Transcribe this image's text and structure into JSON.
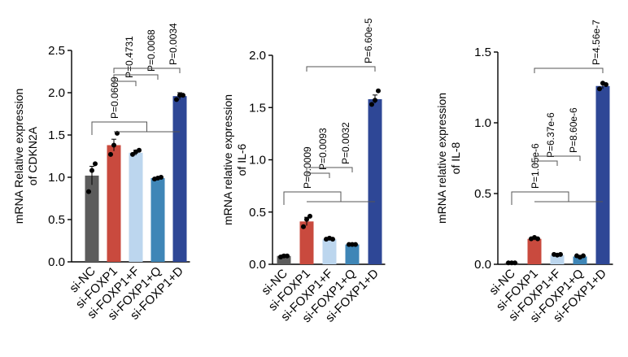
{
  "chart_data": [
    {
      "type": "bar",
      "ylabel_lines": [
        "mRNA Relative expression",
        "of CDKN2A"
      ],
      "categories": [
        "si-NC",
        "si-FOXP1",
        "si-FOXP1+F",
        "si-FOXP1+Q",
        "si-FOXP1+D"
      ],
      "values": [
        1.02,
        1.38,
        1.29,
        0.99,
        1.96
      ],
      "errors": [
        0.11,
        0.07,
        0.03,
        0.01,
        0.04
      ],
      "points": [
        [
          0.83,
          1.08,
          1.16
        ],
        [
          1.27,
          1.38,
          1.52
        ],
        [
          1.27,
          1.3,
          1.32
        ],
        [
          0.98,
          0.99,
          1.0
        ],
        [
          1.92,
          1.97,
          1.97
        ]
      ],
      "colors": [
        "#5c5c5c",
        "#c94a3e",
        "#bcd6ee",
        "#3f86b7",
        "#2e4796"
      ],
      "ylim": [
        0,
        2.5
      ],
      "yticks": [
        "0.0",
        "0.5",
        "1.0",
        "1.5",
        "2.0",
        "2.5"
      ],
      "annotations": [
        {
          "from": 0,
          "to": "1-4",
          "text": "P=0.0609"
        },
        {
          "from": 1,
          "to": 2,
          "text": "P=0.4731"
        },
        {
          "from": 1,
          "to": 3,
          "text": "P=0.0068"
        },
        {
          "from": 1,
          "to": 4,
          "text": "P=0.0034"
        }
      ]
    },
    {
      "type": "bar",
      "ylabel_lines": [
        "mRNA relative expression",
        "of IL-6"
      ],
      "categories": [
        "si-NC",
        "si-FOXP1",
        "si-FOXP1+F",
        "si-FOXP1+Q",
        "si-FOXP1+D"
      ],
      "values": [
        0.08,
        0.41,
        0.24,
        0.19,
        1.58
      ],
      "errors": [
        0.01,
        0.04,
        0.01,
        0.005,
        0.04
      ],
      "points": [
        [
          0.07,
          0.08,
          0.08
        ],
        [
          0.36,
          0.43,
          0.46
        ],
        [
          0.24,
          0.25,
          0.24
        ],
        [
          0.19,
          0.19,
          0.19
        ],
        [
          1.53,
          1.57,
          1.66
        ]
      ],
      "colors": [
        "#5c5c5c",
        "#c94a3e",
        "#bcd6ee",
        "#3f86b7",
        "#2e4796"
      ],
      "ylim": [
        0,
        2.0
      ],
      "yticks": [
        "0.0",
        "0.5",
        "1.0",
        "1.5",
        "2.0"
      ],
      "annotations": [
        {
          "from": 0,
          "to": "1-4",
          "text": "P=0.0009"
        },
        {
          "from": 1,
          "to": 2,
          "text": "P=0.0093"
        },
        {
          "from": 1,
          "to": 3,
          "text": "P=0.0032"
        },
        {
          "from": 1,
          "to": 4,
          "text": "P=6.60e-5"
        }
      ]
    },
    {
      "type": "bar",
      "ylabel_lines": [
        "mRNA relative expression",
        "of IL-8"
      ],
      "categories": [
        "si-NC",
        "si-FOXP1",
        "si-FOXP1+F",
        "si-FOXP1+Q",
        "si-FOXP1+D"
      ],
      "values": [
        0.01,
        0.18,
        0.065,
        0.055,
        1.26
      ],
      "errors": [
        0.002,
        0.01,
        0.003,
        0.005,
        0.02
      ],
      "points": [
        [
          0.01,
          0.01,
          0.01
        ],
        [
          0.18,
          0.19,
          0.18
        ],
        [
          0.07,
          0.065,
          0.07
        ],
        [
          0.06,
          0.05,
          0.06
        ],
        [
          1.24,
          1.28,
          1.27
        ]
      ],
      "colors": [
        "#5c5c5c",
        "#c94a3e",
        "#bcd6ee",
        "#3f86b7",
        "#2e4796"
      ],
      "ylim": [
        0,
        1.5
      ],
      "yticks": [
        "0.0",
        "0.5",
        "1.0",
        "1.5"
      ],
      "annotations": [
        {
          "from": 0,
          "to": "1-4",
          "text": "P=1.05e-6"
        },
        {
          "from": 1,
          "to": 2,
          "text": "P=6.37e-6"
        },
        {
          "from": 1,
          "to": 3,
          "text": "P=8.60e-6"
        },
        {
          "from": 1,
          "to": 4,
          "text": "P=4.56e-7"
        }
      ]
    }
  ]
}
